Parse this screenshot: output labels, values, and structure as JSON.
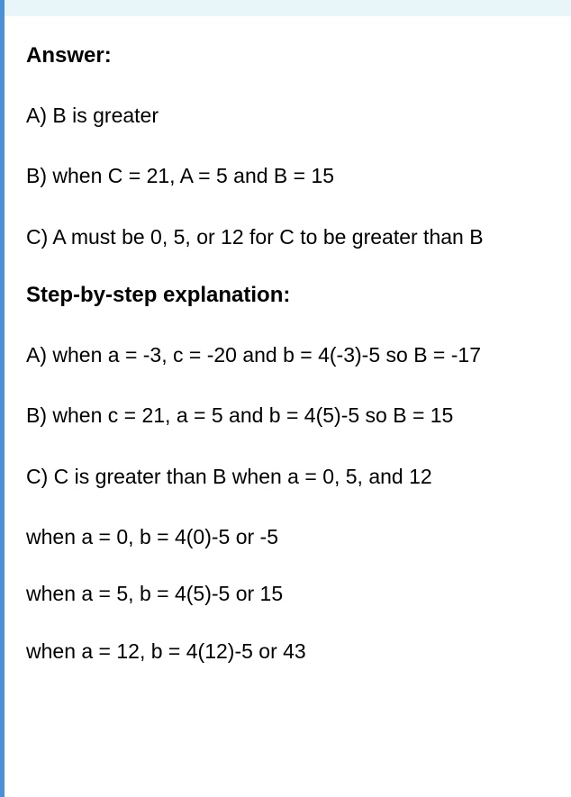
{
  "top_band_color": "#e8f5f9",
  "border_color": "#4a90d9",
  "text_color": "#000000",
  "font_size_heading": 24,
  "font_size_body": 23,
  "sections": {
    "answer_heading": "Answer:",
    "answer_a": "A)  B is greater",
    "answer_b": "B) when C = 21, A = 5 and B = 15",
    "answer_c": "C) A must be 0, 5, or 12 for C to be greater than B",
    "explanation_heading": "Step-by-step explanation:",
    "expl_a": "A)  when a = -3, c = -20 and b = 4(-3)-5 so B = -17",
    "expl_b": "B) when c = 21, a = 5 and b = 4(5)-5 so B = 15",
    "expl_c": "C) C is greater than B when a = 0, 5, and 12",
    "expl_c1": "when a = 0, b = 4(0)-5 or -5",
    "expl_c2": "when a = 5, b = 4(5)-5 or 15",
    "expl_c3": "when a = 12, b = 4(12)-5 or 43"
  }
}
